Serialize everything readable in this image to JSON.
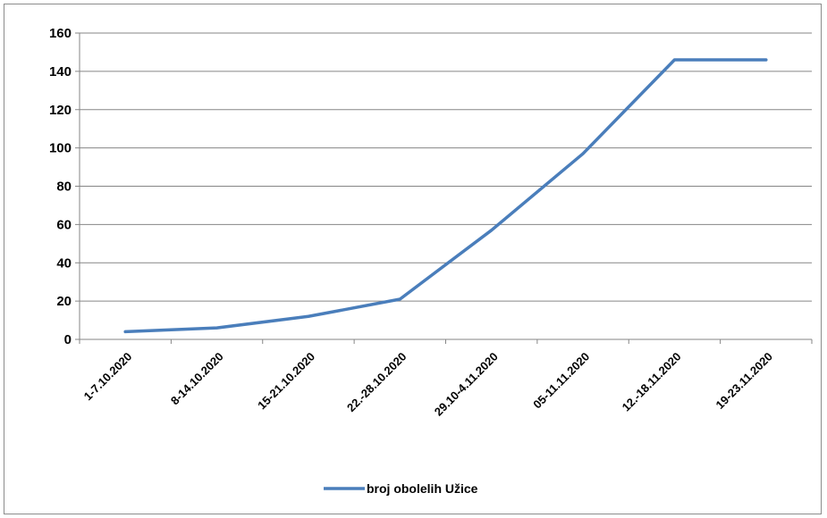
{
  "chart_data": {
    "type": "line",
    "categories": [
      "1-7.10.2020",
      "8-14.10.2020",
      "15-21.10.2020",
      "22.-28.10.2020",
      "29.10-4.11.2020",
      "05-11.11.2020",
      "12.-18.11.2020",
      "19-23.11.2020"
    ],
    "series": [
      {
        "name": "broj obolelih Užice",
        "values": [
          4,
          6,
          12,
          21,
          57,
          97,
          146,
          146
        ],
        "color": "#4a7ebb"
      }
    ],
    "ylim": [
      0,
      160
    ],
    "yticks": [
      0,
      20,
      40,
      60,
      80,
      100,
      120,
      140,
      160
    ],
    "grid": true,
    "legend": "bottom",
    "title": "",
    "xlabel": "",
    "ylabel": ""
  }
}
